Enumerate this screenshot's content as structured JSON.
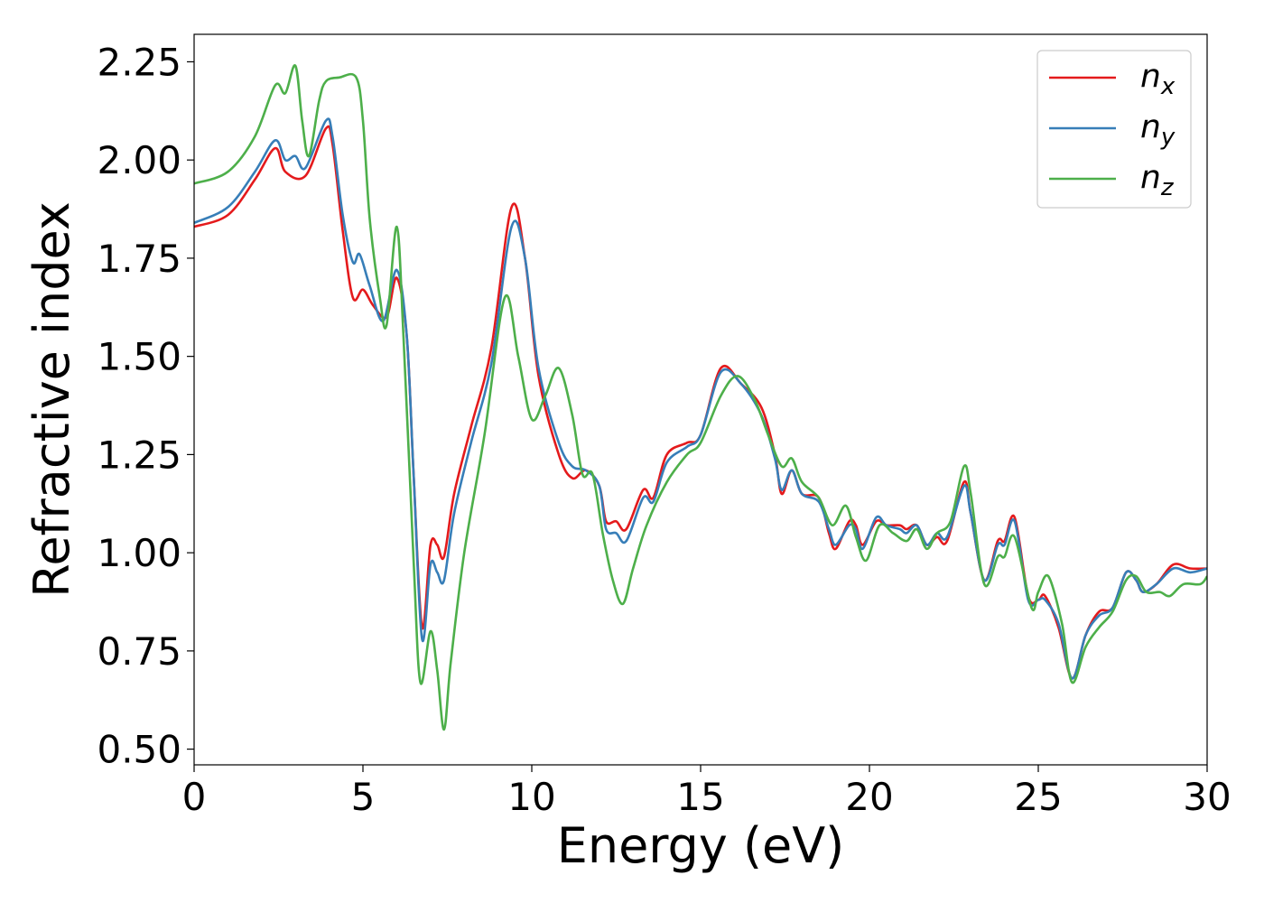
{
  "chart_data": {
    "type": "line",
    "xlabel": "Energy (eV)",
    "ylabel": "Refractive index",
    "xlim": [
      0,
      30
    ],
    "ylim": [
      0.46,
      2.32
    ],
    "xticks": [
      0,
      5,
      10,
      15,
      20,
      25,
      30
    ],
    "xtick_labels": [
      "0",
      "5",
      "10",
      "15",
      "20",
      "25",
      "30"
    ],
    "yticks": [
      0.5,
      0.75,
      1.0,
      1.25,
      1.5,
      1.75,
      2.0,
      2.25
    ],
    "ytick_labels": [
      "0.50",
      "0.75",
      "1.00",
      "1.25",
      "1.50",
      "1.75",
      "2.00",
      "2.25"
    ],
    "grid": false,
    "legend_position": "top-right",
    "series": [
      {
        "name": "n",
        "subscript": "x",
        "color": "#e41a1c",
        "points": [
          [
            0,
            1.83
          ],
          [
            1,
            1.86
          ],
          [
            1.8,
            1.95
          ],
          [
            2.4,
            2.03
          ],
          [
            2.7,
            1.97
          ],
          [
            3.3,
            1.96
          ],
          [
            3.9,
            2.08
          ],
          [
            4.1,
            2.04
          ],
          [
            4.4,
            1.82
          ],
          [
            4.7,
            1.65
          ],
          [
            5.0,
            1.67
          ],
          [
            5.3,
            1.63
          ],
          [
            5.7,
            1.6
          ],
          [
            6.0,
            1.7
          ],
          [
            6.3,
            1.55
          ],
          [
            6.5,
            1.2
          ],
          [
            6.75,
            0.81
          ],
          [
            7.0,
            1.02
          ],
          [
            7.2,
            1.02
          ],
          [
            7.4,
            0.99
          ],
          [
            7.7,
            1.15
          ],
          [
            8.2,
            1.32
          ],
          [
            8.8,
            1.52
          ],
          [
            9.4,
            1.88
          ],
          [
            9.8,
            1.75
          ],
          [
            10.2,
            1.45
          ],
          [
            10.8,
            1.25
          ],
          [
            11.2,
            1.19
          ],
          [
            11.6,
            1.21
          ],
          [
            12.0,
            1.17
          ],
          [
            12.2,
            1.08
          ],
          [
            12.5,
            1.08
          ],
          [
            12.8,
            1.06
          ],
          [
            13.3,
            1.16
          ],
          [
            13.6,
            1.14
          ],
          [
            14.0,
            1.25
          ],
          [
            14.6,
            1.28
          ],
          [
            15.0,
            1.3
          ],
          [
            15.6,
            1.47
          ],
          [
            16.2,
            1.43
          ],
          [
            16.8,
            1.37
          ],
          [
            17.2,
            1.25
          ],
          [
            17.4,
            1.15
          ],
          [
            17.7,
            1.21
          ],
          [
            18.0,
            1.15
          ],
          [
            18.5,
            1.14
          ],
          [
            18.8,
            1.05
          ],
          [
            19.0,
            1.01
          ],
          [
            19.4,
            1.08
          ],
          [
            19.6,
            1.07
          ],
          [
            19.8,
            1.02
          ],
          [
            20.2,
            1.08
          ],
          [
            20.5,
            1.07
          ],
          [
            20.9,
            1.07
          ],
          [
            21.1,
            1.06
          ],
          [
            21.4,
            1.07
          ],
          [
            21.7,
            1.02
          ],
          [
            22.0,
            1.04
          ],
          [
            22.3,
            1.03
          ],
          [
            22.8,
            1.18
          ],
          [
            23.0,
            1.1
          ],
          [
            23.4,
            0.93
          ],
          [
            23.8,
            1.03
          ],
          [
            24.0,
            1.03
          ],
          [
            24.3,
            1.09
          ],
          [
            24.7,
            0.89
          ],
          [
            25.0,
            0.88
          ],
          [
            25.2,
            0.89
          ],
          [
            25.6,
            0.81
          ],
          [
            26.0,
            0.68
          ],
          [
            26.4,
            0.79
          ],
          [
            26.8,
            0.85
          ],
          [
            27.2,
            0.86
          ],
          [
            27.6,
            0.95
          ],
          [
            27.9,
            0.93
          ],
          [
            28.1,
            0.9
          ],
          [
            28.5,
            0.92
          ],
          [
            29.0,
            0.97
          ],
          [
            29.5,
            0.96
          ],
          [
            30,
            0.96
          ]
        ]
      },
      {
        "name": "n",
        "subscript": "y",
        "color": "#377eb8",
        "points": [
          [
            0,
            1.84
          ],
          [
            1,
            1.88
          ],
          [
            1.8,
            1.97
          ],
          [
            2.4,
            2.05
          ],
          [
            2.7,
            2.0
          ],
          [
            3.0,
            2.01
          ],
          [
            3.3,
            1.98
          ],
          [
            3.9,
            2.1
          ],
          [
            4.1,
            2.06
          ],
          [
            4.4,
            1.86
          ],
          [
            4.7,
            1.74
          ],
          [
            4.9,
            1.76
          ],
          [
            5.2,
            1.68
          ],
          [
            5.6,
            1.59
          ],
          [
            6.0,
            1.72
          ],
          [
            6.3,
            1.55
          ],
          [
            6.5,
            1.2
          ],
          [
            6.75,
            0.78
          ],
          [
            7.0,
            0.97
          ],
          [
            7.2,
            0.95
          ],
          [
            7.4,
            0.93
          ],
          [
            7.7,
            1.1
          ],
          [
            8.2,
            1.28
          ],
          [
            8.8,
            1.48
          ],
          [
            9.4,
            1.83
          ],
          [
            9.8,
            1.75
          ],
          [
            10.2,
            1.47
          ],
          [
            10.8,
            1.28
          ],
          [
            11.2,
            1.22
          ],
          [
            11.6,
            1.21
          ],
          [
            12.0,
            1.17
          ],
          [
            12.2,
            1.06
          ],
          [
            12.5,
            1.05
          ],
          [
            12.8,
            1.03
          ],
          [
            13.3,
            1.14
          ],
          [
            13.6,
            1.13
          ],
          [
            14.0,
            1.23
          ],
          [
            14.6,
            1.27
          ],
          [
            15.0,
            1.3
          ],
          [
            15.6,
            1.46
          ],
          [
            16.2,
            1.43
          ],
          [
            16.8,
            1.35
          ],
          [
            17.2,
            1.24
          ],
          [
            17.4,
            1.16
          ],
          [
            17.7,
            1.21
          ],
          [
            18.0,
            1.15
          ],
          [
            18.5,
            1.13
          ],
          [
            18.8,
            1.06
          ],
          [
            19.0,
            1.02
          ],
          [
            19.4,
            1.07
          ],
          [
            19.6,
            1.06
          ],
          [
            19.8,
            1.01
          ],
          [
            20.2,
            1.09
          ],
          [
            20.5,
            1.07
          ],
          [
            20.9,
            1.06
          ],
          [
            21.1,
            1.05
          ],
          [
            21.4,
            1.07
          ],
          [
            21.7,
            1.02
          ],
          [
            22.0,
            1.05
          ],
          [
            22.3,
            1.04
          ],
          [
            22.8,
            1.17
          ],
          [
            23.0,
            1.1
          ],
          [
            23.4,
            0.93
          ],
          [
            23.8,
            1.02
          ],
          [
            24.0,
            1.02
          ],
          [
            24.3,
            1.08
          ],
          [
            24.7,
            0.88
          ],
          [
            25.0,
            0.88
          ],
          [
            25.2,
            0.88
          ],
          [
            25.6,
            0.82
          ],
          [
            26.0,
            0.68
          ],
          [
            26.4,
            0.79
          ],
          [
            26.8,
            0.84
          ],
          [
            27.2,
            0.86
          ],
          [
            27.6,
            0.95
          ],
          [
            27.9,
            0.93
          ],
          [
            28.1,
            0.9
          ],
          [
            28.5,
            0.92
          ],
          [
            29.0,
            0.96
          ],
          [
            29.5,
            0.95
          ],
          [
            30,
            0.96
          ]
        ]
      },
      {
        "name": "n",
        "subscript": "z",
        "color": "#4daf4a",
        "points": [
          [
            0,
            1.94
          ],
          [
            1,
            1.97
          ],
          [
            1.8,
            2.06
          ],
          [
            2.4,
            2.19
          ],
          [
            2.7,
            2.17
          ],
          [
            3.0,
            2.24
          ],
          [
            3.2,
            2.1
          ],
          [
            3.4,
            2.01
          ],
          [
            3.7,
            2.15
          ],
          [
            3.9,
            2.2
          ],
          [
            4.3,
            2.21
          ],
          [
            4.8,
            2.21
          ],
          [
            5.0,
            2.1
          ],
          [
            5.2,
            1.85
          ],
          [
            5.5,
            1.65
          ],
          [
            5.7,
            1.58
          ],
          [
            6.0,
            1.83
          ],
          [
            6.2,
            1.55
          ],
          [
            6.5,
            0.98
          ],
          [
            6.7,
            0.67
          ],
          [
            7.0,
            0.8
          ],
          [
            7.2,
            0.7
          ],
          [
            7.4,
            0.55
          ],
          [
            7.6,
            0.72
          ],
          [
            8.0,
            1.0
          ],
          [
            8.6,
            1.3
          ],
          [
            9.2,
            1.65
          ],
          [
            9.6,
            1.5
          ],
          [
            10.0,
            1.34
          ],
          [
            10.4,
            1.4
          ],
          [
            10.8,
            1.47
          ],
          [
            11.2,
            1.35
          ],
          [
            11.5,
            1.2
          ],
          [
            11.8,
            1.2
          ],
          [
            12.1,
            1.05
          ],
          [
            12.4,
            0.93
          ],
          [
            12.7,
            0.87
          ],
          [
            13.0,
            0.96
          ],
          [
            13.4,
            1.07
          ],
          [
            14.0,
            1.18
          ],
          [
            14.6,
            1.25
          ],
          [
            15.0,
            1.28
          ],
          [
            15.6,
            1.4
          ],
          [
            16.1,
            1.45
          ],
          [
            16.6,
            1.39
          ],
          [
            17.0,
            1.3
          ],
          [
            17.4,
            1.22
          ],
          [
            17.7,
            1.24
          ],
          [
            18.0,
            1.18
          ],
          [
            18.5,
            1.14
          ],
          [
            18.9,
            1.07
          ],
          [
            19.3,
            1.12
          ],
          [
            19.6,
            1.04
          ],
          [
            19.9,
            0.98
          ],
          [
            20.3,
            1.07
          ],
          [
            20.7,
            1.05
          ],
          [
            21.1,
            1.03
          ],
          [
            21.4,
            1.06
          ],
          [
            21.7,
            1.01
          ],
          [
            22.0,
            1.05
          ],
          [
            22.4,
            1.08
          ],
          [
            22.8,
            1.22
          ],
          [
            23.0,
            1.15
          ],
          [
            23.4,
            0.92
          ],
          [
            23.8,
            0.99
          ],
          [
            24.0,
            0.99
          ],
          [
            24.3,
            1.04
          ],
          [
            24.8,
            0.86
          ],
          [
            25.0,
            0.9
          ],
          [
            25.3,
            0.94
          ],
          [
            25.7,
            0.82
          ],
          [
            26.0,
            0.67
          ],
          [
            26.4,
            0.76
          ],
          [
            26.8,
            0.81
          ],
          [
            27.2,
            0.85
          ],
          [
            27.6,
            0.93
          ],
          [
            27.9,
            0.94
          ],
          [
            28.2,
            0.9
          ],
          [
            28.6,
            0.9
          ],
          [
            28.9,
            0.89
          ],
          [
            29.3,
            0.92
          ],
          [
            29.8,
            0.92
          ],
          [
            30,
            0.94
          ]
        ]
      }
    ]
  }
}
